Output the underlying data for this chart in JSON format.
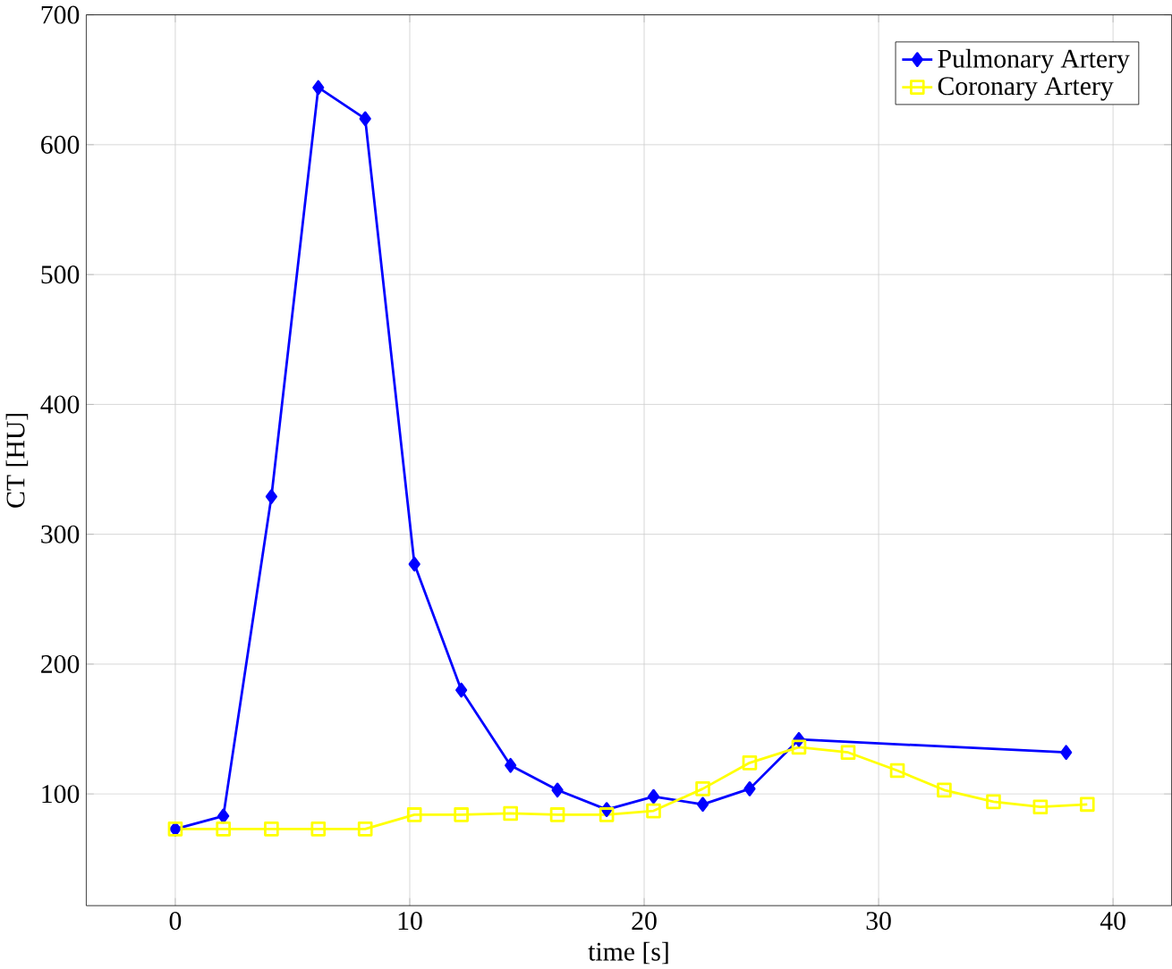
{
  "chart_data": {
    "type": "line",
    "xlabel": "time [s]",
    "ylabel": "CT [HU]",
    "xlim": [
      -3.8,
      42.5
    ],
    "ylim": [
      14,
      700
    ],
    "xticks": [
      0,
      10,
      20,
      30,
      40
    ],
    "yticks": [
      100,
      200,
      300,
      400,
      500,
      600,
      700
    ],
    "grid": true,
    "legend": "top right",
    "series": [
      {
        "name": "Pulmonary Artery",
        "color": "#0000ff",
        "marker": "diamond",
        "x": [
          0,
          2.05,
          4.1,
          6.1,
          8.1,
          10.2,
          12.2,
          14.3,
          16.3,
          18.4,
          20.4,
          22.5,
          24.5,
          26.6,
          38
        ],
        "values": [
          73,
          83,
          329,
          644,
          620,
          277,
          180,
          122,
          103,
          88,
          98,
          92,
          104,
          142,
          132
        ]
      },
      {
        "name": "Coronary Artery",
        "color": "#ffff00",
        "marker": "square",
        "x": [
          0,
          2.05,
          4.1,
          6.1,
          8.1,
          10.2,
          12.2,
          14.3,
          16.3,
          18.4,
          20.4,
          22.5,
          24.5,
          26.6,
          28.7,
          30.8,
          32.8,
          34.9,
          36.9,
          38.9
        ],
        "values": [
          73,
          73,
          73,
          73,
          73,
          84,
          84,
          85,
          84,
          84,
          87,
          104,
          124,
          136,
          132,
          118,
          103,
          94,
          90,
          92
        ]
      }
    ]
  }
}
